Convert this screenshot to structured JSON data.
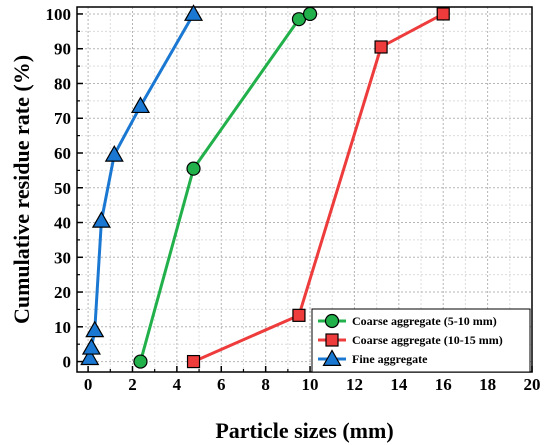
{
  "chart_data": {
    "type": "line",
    "title": "",
    "xlabel": "Particle sizes (mm)",
    "ylabel": "Cumulative residue rate (%)",
    "xlim": [
      -0.5,
      20
    ],
    "ylim": [
      -3,
      102
    ],
    "xticks": [
      0,
      2,
      4,
      6,
      8,
      10,
      12,
      14,
      16,
      18,
      20
    ],
    "yticks": [
      0,
      10,
      20,
      30,
      40,
      50,
      60,
      70,
      80,
      90,
      100
    ],
    "grid": true,
    "legend_position": "bottom-right",
    "series": [
      {
        "name": "Coarse aggregate (5-10 mm)",
        "color": "#22b04b",
        "marker": "circle",
        "x": [
          2.36,
          4.75,
          9.5,
          10
        ],
        "y": [
          0,
          55.5,
          98.5,
          100
        ]
      },
      {
        "name": "Coarse aggregate (10-15 mm)",
        "color": "#ee3b3b",
        "marker": "square",
        "x": [
          4.75,
          9.5,
          13.2,
          16
        ],
        "y": [
          0,
          13.3,
          90.5,
          100
        ]
      },
      {
        "name": "Fine aggregate",
        "color": "#1a78d2",
        "marker": "triangle",
        "x": [
          0.075,
          0.15,
          0.3,
          0.6,
          1.18,
          2.36,
          4.75
        ],
        "y": [
          1,
          4,
          9,
          40.5,
          59.5,
          73.5,
          100
        ]
      }
    ]
  }
}
